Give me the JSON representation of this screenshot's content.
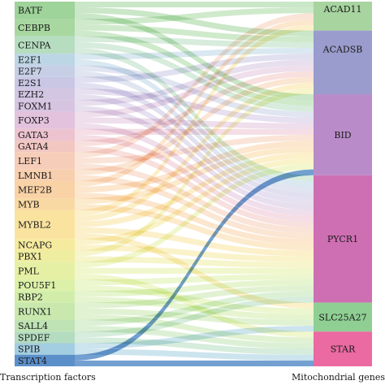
{
  "diagram": {
    "left_caption": "Transcription factors",
    "right_caption": "Mitochondrial genes",
    "left_nodes": [
      {
        "label": "BATF",
        "color": "#9ed39a"
      },
      {
        "label": "CEBPB",
        "color": "#a8d8a0"
      },
      {
        "label": "CENPA",
        "color": "#b6ddc0"
      },
      {
        "label": "E2F1",
        "color": "#bcd6e6"
      },
      {
        "label": "E2F7",
        "color": "#c6cfe6"
      },
      {
        "label": "E2S1",
        "color": "#c9c7e4"
      },
      {
        "label": "EZH2",
        "color": "#d2c6e3"
      },
      {
        "label": "FOXM1",
        "color": "#d6c4e0"
      },
      {
        "label": "FOXP3",
        "color": "#e2c2dc"
      },
      {
        "label": "GATA3",
        "color": "#ecc3cf"
      },
      {
        "label": "GATA4",
        "color": "#f2c7c2"
      },
      {
        "label": "LEF1",
        "color": "#f6cdb8"
      },
      {
        "label": "LMNB1",
        "color": "#f8cfae"
      },
      {
        "label": "MEF2B",
        "color": "#f9d2a6"
      },
      {
        "label": "MYB",
        "color": "#f9d9a3"
      },
      {
        "label": "MYBL2",
        "color": "#fae39f"
      },
      {
        "label": "NCAPG",
        "color": "#f6ea9e"
      },
      {
        "label": "PBX1",
        "color": "#efeda0"
      },
      {
        "label": "PML",
        "color": "#e6f0a4"
      },
      {
        "label": "POU5F1",
        "color": "#dcf0a8"
      },
      {
        "label": "RBP2",
        "color": "#d2edaa"
      },
      {
        "label": "RUNX1",
        "color": "#c8e8ae"
      },
      {
        "label": "SALL4",
        "color": "#bfe3b4"
      },
      {
        "label": "SPDEF",
        "color": "#b4dcc0"
      },
      {
        "label": "SPIB",
        "color": "#a3cde0"
      },
      {
        "label": "STAT4",
        "color": "#5b8fc9"
      }
    ],
    "right_nodes": [
      {
        "label": "ACAD11",
        "color": "#a7d49f"
      },
      {
        "label": "ACADSB",
        "color": "#9a9ccd"
      },
      {
        "label": "BID",
        "color": "#b98cc9"
      },
      {
        "label": "PYCR1",
        "color": "#cf6fb3"
      },
      {
        "label": "SLC25A27",
        "color": "#8fcf93"
      },
      {
        "label": "STAR",
        "color": "#ea6aa1"
      }
    ],
    "links": [
      [
        "BATF",
        "ACAD11"
      ],
      [
        "BATF",
        "ACADSB"
      ],
      [
        "BATF",
        "BID"
      ],
      [
        "CEBPB",
        "ACAD11"
      ],
      [
        "CEBPB",
        "ACADSB"
      ],
      [
        "CEBPB",
        "BID"
      ],
      [
        "CENPA",
        "ACADSB"
      ],
      [
        "CENPA",
        "BID"
      ],
      [
        "CENPA",
        "PYCR1"
      ],
      [
        "E2F1",
        "ACADSB"
      ],
      [
        "E2F1",
        "PYCR1"
      ],
      [
        "E2F7",
        "BID"
      ],
      [
        "E2F7",
        "PYCR1"
      ],
      [
        "E2S1",
        "ACADSB"
      ],
      [
        "E2S1",
        "PYCR1"
      ],
      [
        "EZH2",
        "BID"
      ],
      [
        "EZH2",
        "PYCR1"
      ],
      [
        "FOXM1",
        "ACADSB"
      ],
      [
        "FOXM1",
        "PYCR1"
      ],
      [
        "FOXP3",
        "ACADSB"
      ],
      [
        "FOXP3",
        "BID"
      ],
      [
        "FOXP3",
        "PYCR1"
      ],
      [
        "GATA3",
        "BID"
      ],
      [
        "GATA3",
        "PYCR1"
      ],
      [
        "GATA4",
        "ACADSB"
      ],
      [
        "GATA4",
        "PYCR1"
      ],
      [
        "LEF1",
        "ACAD11"
      ],
      [
        "LEF1",
        "BID"
      ],
      [
        "LEF1",
        "PYCR1"
      ],
      [
        "LMNB1",
        "ACADSB"
      ],
      [
        "LMNB1",
        "PYCR1"
      ],
      [
        "MEF2B",
        "ACAD11"
      ],
      [
        "MEF2B",
        "BID"
      ],
      [
        "MEF2B",
        "PYCR1"
      ],
      [
        "MYB",
        "BID"
      ],
      [
        "MYB",
        "PYCR1"
      ],
      [
        "MYBL2",
        "ACAD11"
      ],
      [
        "MYBL2",
        "ACADSB"
      ],
      [
        "MYBL2",
        "BID"
      ],
      [
        "MYBL2",
        "PYCR1"
      ],
      [
        "MYBL2",
        "SLC25A27"
      ],
      [
        "NCAPG",
        "BID"
      ],
      [
        "NCAPG",
        "PYCR1"
      ],
      [
        "PBX1",
        "ACADSB"
      ],
      [
        "PBX1",
        "PYCR1"
      ],
      [
        "PML",
        "BID"
      ],
      [
        "PML",
        "PYCR1"
      ],
      [
        "PML",
        "STAR"
      ],
      [
        "POU5F1",
        "PYCR1"
      ],
      [
        "POU5F1",
        "SLC25A27"
      ],
      [
        "RBP2",
        "PYCR1"
      ],
      [
        "RBP2",
        "SLC25A27"
      ],
      [
        "RUNX1",
        "PYCR1"
      ],
      [
        "RUNX1",
        "SLC25A27"
      ],
      [
        "RUNX1",
        "STAR"
      ],
      [
        "SALL4",
        "PYCR1"
      ],
      [
        "SALL4",
        "STAR"
      ],
      [
        "SPDEF",
        "PYCR1"
      ],
      [
        "SPDEF",
        "STAR"
      ],
      [
        "SPIB",
        "SLC25A27"
      ],
      [
        "SPIB",
        "STAR"
      ],
      [
        "STAT4",
        "BID"
      ],
      [
        "STAT4",
        "STAR"
      ]
    ]
  }
}
